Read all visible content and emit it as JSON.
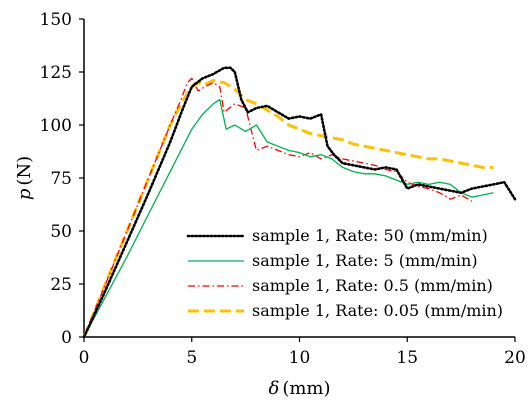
{
  "chart_data": {
    "type": "line",
    "xlabel_symbol": "δ",
    "xlabel_unit": "(mm)",
    "ylabel_symbol": "p",
    "ylabel_unit": "(N)",
    "xlim": [
      0,
      20
    ],
    "ylim": [
      0,
      150
    ],
    "xticks": [
      "0",
      "5",
      "10",
      "15",
      "20"
    ],
    "yticks": [
      "0",
      "25",
      "50",
      "75",
      "100",
      "125",
      "150"
    ],
    "legend_position": "center-right",
    "grid": false,
    "series": [
      {
        "name": "sample 1, Rate: 50 (mm/min)",
        "color": "#000000",
        "style": "dotted",
        "x": [
          0,
          1,
          2,
          3,
          4,
          4.6,
          5,
          5.5,
          6,
          6.5,
          6.8,
          7,
          7.3,
          7.6,
          8,
          8.5,
          9,
          9.5,
          10,
          10.5,
          11,
          11.3,
          11.6,
          12,
          12.5,
          13,
          13.5,
          14,
          14.5,
          15,
          15.5,
          16,
          16.5,
          17,
          17.5,
          18,
          18.5,
          19,
          19.5,
          20
        ],
        "y": [
          0,
          22,
          45,
          68,
          92,
          108,
          118,
          122,
          124,
          127,
          127,
          125,
          112,
          106,
          108,
          109,
          106,
          103,
          104,
          103,
          105,
          90,
          86,
          82,
          81,
          80,
          79,
          80,
          79,
          70,
          72,
          71,
          70,
          69,
          68,
          70,
          71,
          72,
          73,
          65
        ]
      },
      {
        "name": "sample 1, Rate: 5 (mm/min)",
        "color": "#00b050",
        "style": "solid",
        "x": [
          0,
          1,
          2,
          3,
          4,
          5,
          5.5,
          6,
          6.3,
          6.6,
          7,
          7.5,
          8,
          8.5,
          9,
          9.5,
          10,
          10.5,
          11,
          11.5,
          12,
          12.5,
          13,
          13.5,
          14,
          14.5,
          15,
          15.5,
          16,
          16.5,
          17,
          17.5,
          18,
          18.5,
          19
        ],
        "y": [
          0,
          19,
          38,
          58,
          78,
          98,
          105,
          110,
          112,
          98,
          100,
          97,
          100,
          92,
          90,
          88,
          87,
          85,
          86,
          84,
          80,
          78,
          77,
          77,
          76,
          74,
          72,
          73,
          72,
          73,
          72,
          68,
          66,
          67,
          68
        ]
      },
      {
        "name": "sample 1, Rate: 0.5 (mm/min)",
        "color": "#ff0000",
        "style": "dashdot",
        "x": [
          0,
          1,
          2,
          3,
          4,
          4.5,
          4.8,
          5,
          5.3,
          5.6,
          6,
          6.3,
          6.5,
          7,
          7.5,
          8,
          8.5,
          9,
          9.5,
          10,
          10.5,
          11,
          11.5,
          12,
          12.5,
          13,
          13.5,
          14,
          14.5,
          15,
          15.5,
          16,
          16.5,
          17,
          17.5,
          18
        ],
        "y": [
          0,
          25,
          50,
          75,
          100,
          112,
          120,
          122,
          116,
          118,
          120,
          118,
          106,
          110,
          108,
          88,
          90,
          88,
          86,
          85,
          87,
          84,
          86,
          84,
          83,
          82,
          81,
          79,
          78,
          73,
          71,
          70,
          68,
          65,
          67,
          64
        ]
      },
      {
        "name": "sample 1, Rate: 0.05 (mm/min)",
        "color": "#ffc000",
        "style": "dashed",
        "x": [
          0,
          1,
          2,
          3,
          4,
          4.5,
          5,
          5.3,
          5.6,
          6,
          6.5,
          7,
          7.5,
          8,
          8.5,
          9,
          9.5,
          10,
          10.5,
          11,
          11.5,
          12,
          12.5,
          13,
          13.5,
          14,
          14.5,
          15,
          15.5,
          16,
          16.5,
          17,
          17.5,
          18,
          18.5,
          19
        ],
        "y": [
          0,
          25,
          50,
          75,
          100,
          110,
          118,
          120,
          119,
          121,
          120,
          117,
          112,
          110,
          107,
          104,
          100,
          98,
          96,
          95,
          94,
          93,
          91,
          90,
          89,
          88,
          87,
          86,
          85,
          84,
          84,
          83,
          82,
          81,
          80,
          80
        ]
      }
    ]
  }
}
